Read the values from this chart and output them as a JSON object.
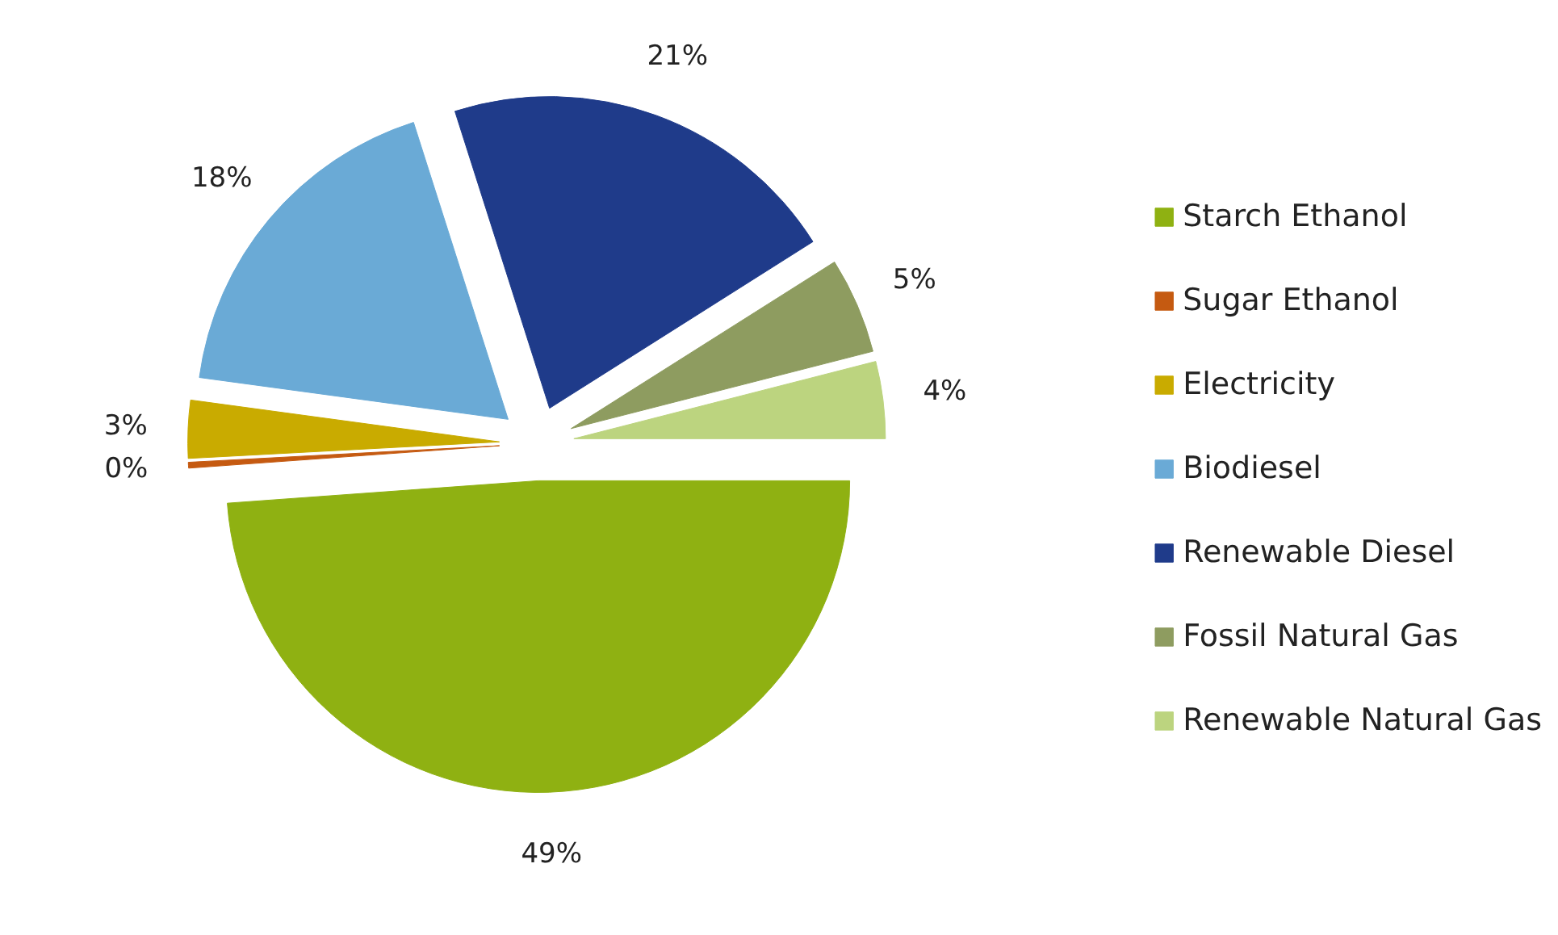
{
  "chart_data": {
    "type": "pie",
    "categories": [
      "Starch Ethanol",
      "Sugar Ethanol",
      "Electricity",
      "Biodiesel",
      "Renewable Diesel",
      "Fossil Natural Gas",
      "Renewable Natural Gas"
    ],
    "values": [
      49,
      0.3,
      3,
      18,
      21,
      5,
      4
    ],
    "colors": [
      "#8fb112",
      "#c55a11",
      "#c9ab00",
      "#6aaad6",
      "#1f3b8a",
      "#8e9c60",
      "#bcd47f"
    ],
    "value_labels": [
      "49%",
      "0%",
      "3%",
      "18%",
      "21%",
      "5%",
      "4%"
    ],
    "legend": "right"
  }
}
